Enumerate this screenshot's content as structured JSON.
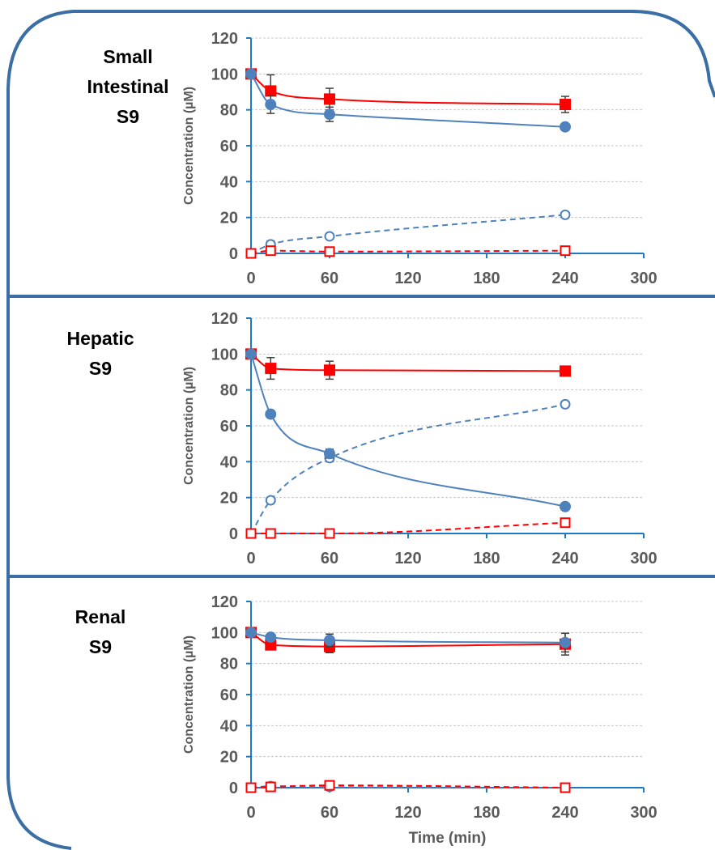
{
  "colors": {
    "frame": "#3a6ea5",
    "axis": "#1f7ac2",
    "grid": "#c8c8c8",
    "blue_series": "#4f81bd",
    "red_series": "#ff0000",
    "error_bar": "#404040",
    "tick_text": "#5a5a5a"
  },
  "chart_data": [
    {
      "type": "line",
      "panel_label": [
        "Small",
        "Intestinal",
        "S9"
      ],
      "ylabel": "Concentration (µM)",
      "xlabel": "",
      "xlim": [
        0,
        300
      ],
      "ylim": [
        0,
        120
      ],
      "xticks": [
        "0",
        "60",
        "120",
        "180",
        "240",
        "300"
      ],
      "yticks": [
        "0",
        "20",
        "40",
        "60",
        "80",
        "100",
        "120"
      ],
      "grid": true,
      "x": [
        0,
        15,
        60,
        240
      ],
      "series": [
        {
          "color": "red",
          "marker": "filled-square",
          "line": "solid",
          "values": [
            100,
            90.5,
            86,
            83
          ],
          "errors": [
            0,
            9,
            6,
            4.5
          ]
        },
        {
          "color": "blue",
          "marker": "filled-circle",
          "line": "solid",
          "values": [
            100,
            83,
            77.5,
            70.5
          ],
          "errors": [
            0,
            5,
            4,
            1
          ]
        },
        {
          "color": "blue",
          "marker": "open-circle",
          "line": "dashed",
          "values": [
            0,
            5,
            9.5,
            21.5
          ],
          "errors": [
            0,
            2,
            1.5,
            1.5
          ]
        },
        {
          "color": "red",
          "marker": "open-square",
          "line": "dashed",
          "values": [
            0,
            1.5,
            1,
            1.5
          ],
          "errors": [
            0,
            1,
            0.5,
            1
          ]
        }
      ]
    },
    {
      "type": "line",
      "panel_label": [
        "Hepatic",
        "S9"
      ],
      "ylabel": "Concentration (µM)",
      "xlabel": "",
      "xlim": [
        0,
        300
      ],
      "ylim": [
        0,
        120
      ],
      "xticks": [
        "0",
        "60",
        "120",
        "180",
        "240",
        "300"
      ],
      "yticks": [
        "0",
        "20",
        "40",
        "60",
        "80",
        "100",
        "120"
      ],
      "grid": true,
      "x": [
        0,
        15,
        60,
        240
      ],
      "series": [
        {
          "color": "red",
          "marker": "filled-square",
          "line": "solid",
          "values": [
            100,
            92,
            91,
            90.5
          ],
          "errors": [
            0,
            6,
            5,
            1.5
          ]
        },
        {
          "color": "blue",
          "marker": "filled-circle",
          "line": "solid",
          "values": [
            100,
            66.5,
            44.5,
            15
          ],
          "errors": [
            0,
            1,
            2.5,
            1
          ]
        },
        {
          "color": "blue",
          "marker": "open-circle",
          "line": "dashed",
          "values": [
            0,
            18.5,
            42,
            72
          ],
          "errors": [
            0,
            1.5,
            2,
            1.5
          ]
        },
        {
          "color": "red",
          "marker": "open-square",
          "line": "dashed",
          "values": [
            0,
            0,
            0,
            6
          ],
          "errors": [
            0,
            0,
            0,
            1
          ]
        }
      ]
    },
    {
      "type": "line",
      "panel_label": [
        "Renal",
        "S9"
      ],
      "ylabel": "Concentration (µM)",
      "xlabel": "Time (min)",
      "xlim": [
        0,
        300
      ],
      "ylim": [
        0,
        120
      ],
      "xticks": [
        "0",
        "60",
        "120",
        "180",
        "240",
        "300"
      ],
      "yticks": [
        "0",
        "20",
        "40",
        "60",
        "80",
        "100",
        "120"
      ],
      "grid": true,
      "x": [
        0,
        15,
        60,
        240
      ],
      "series": [
        {
          "color": "red",
          "marker": "filled-square",
          "line": "solid",
          "values": [
            100,
            92,
            91,
            92.5
          ],
          "errors": [
            0,
            2,
            4,
            7
          ]
        },
        {
          "color": "blue",
          "marker": "filled-circle",
          "line": "solid",
          "values": [
            100,
            97,
            95,
            93.5
          ],
          "errors": [
            0,
            1.5,
            4,
            6
          ]
        },
        {
          "color": "blue",
          "marker": "open-circle",
          "line": "dashed",
          "values": [
            0,
            1,
            0.5,
            0
          ],
          "errors": [
            0,
            1,
            1,
            0.5
          ]
        },
        {
          "color": "red",
          "marker": "open-square",
          "line": "dashed",
          "values": [
            0,
            0.5,
            1.5,
            0
          ],
          "errors": [
            0,
            0.5,
            1,
            0.5
          ]
        }
      ]
    }
  ]
}
